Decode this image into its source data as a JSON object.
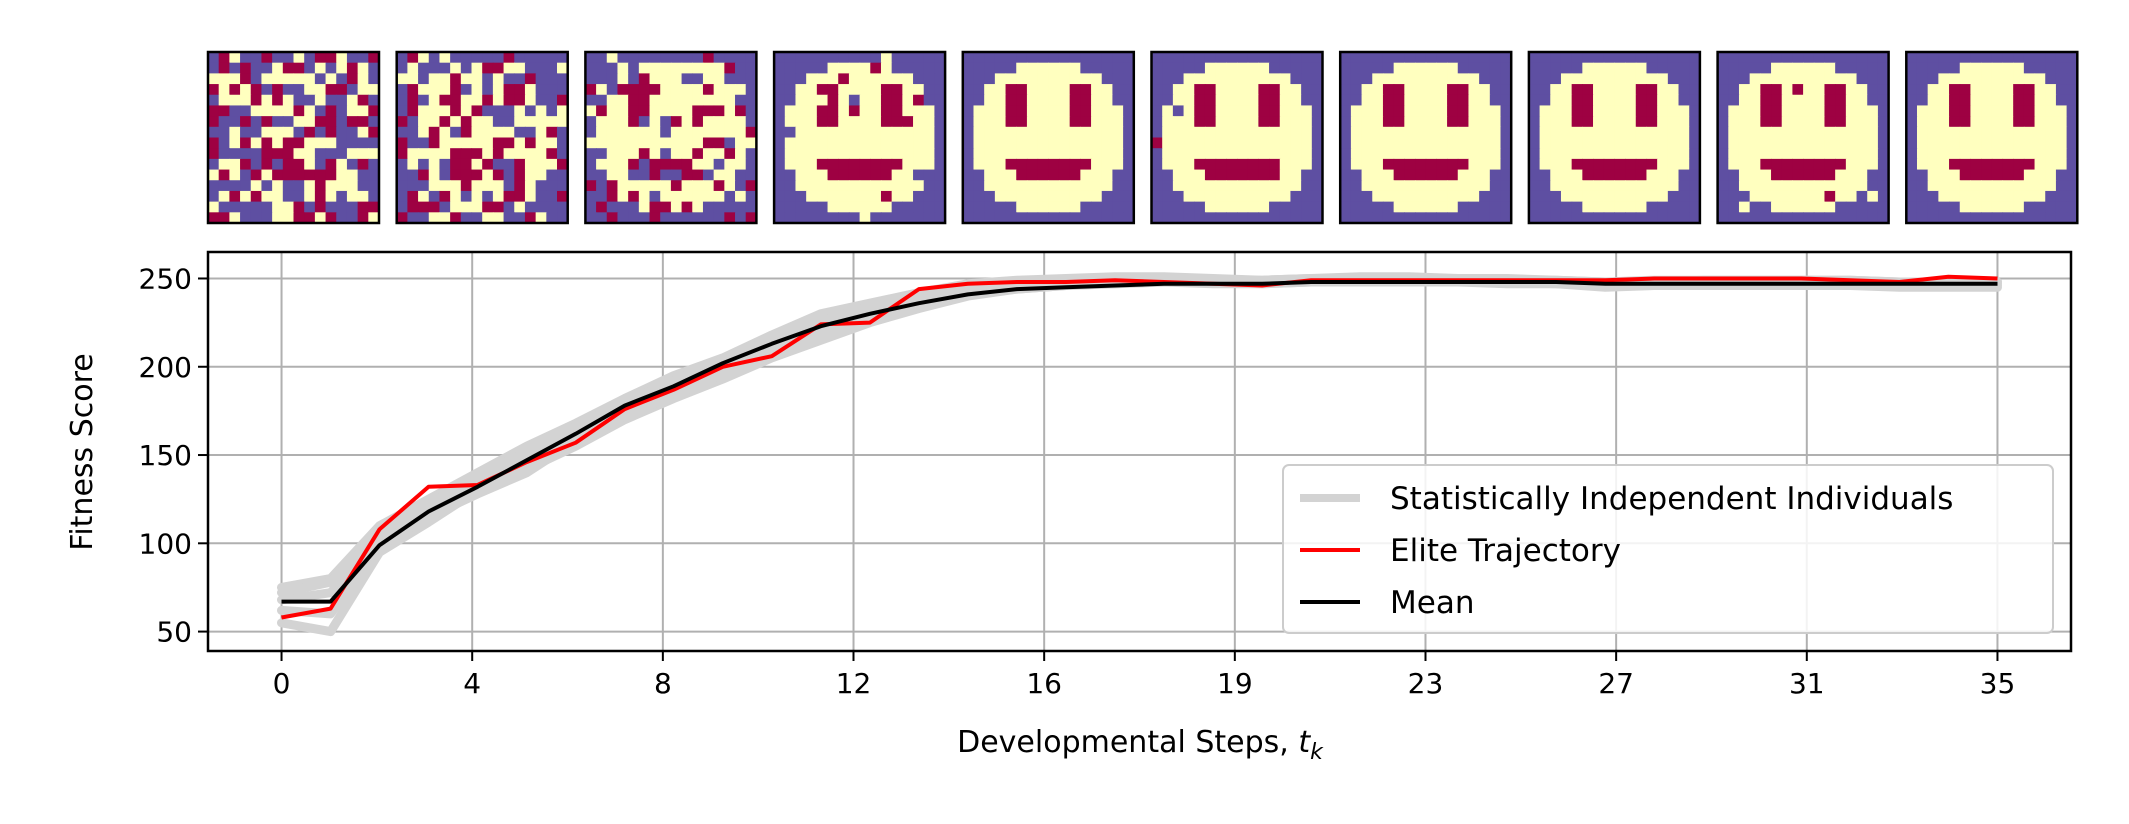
{
  "chart_data": {
    "type": "line",
    "title": "",
    "xlabel": "Developmental Steps, ",
    "xlabel_sub": "k",
    "xlabel_var": "t",
    "ylabel": "Fitness Score",
    "xlim": [
      -1.5,
      36.5
    ],
    "ylim": [
      39,
      265
    ],
    "grid": true,
    "legend_position": "lower-right",
    "x_ticks": [
      0,
      4,
      8,
      12,
      16,
      19,
      23,
      27,
      31,
      35
    ],
    "x_tick_labels": [
      "0",
      "4",
      "8",
      "12",
      "16",
      "19",
      "23",
      "27",
      "31",
      "35"
    ],
    "y_ticks": [
      50,
      100,
      150,
      200,
      250
    ],
    "y_tick_labels": [
      "50",
      "100",
      "150",
      "200",
      "250"
    ],
    "legend": [
      {
        "label": "Statistically Independent Individuals",
        "color": "#d3d3d3"
      },
      {
        "label": "Elite Trajectory",
        "color": "#ff0000"
      },
      {
        "label": "Mean",
        "color": "#000000"
      }
    ],
    "x": [
      0,
      1,
      2,
      3,
      4,
      5,
      6,
      7,
      8,
      9,
      10,
      11,
      12,
      13,
      14,
      15,
      16,
      17,
      18,
      19,
      20,
      21,
      22,
      23,
      24,
      25,
      26,
      27,
      28,
      29,
      30,
      31,
      32,
      33,
      34,
      35
    ],
    "individuals": [
      [
        75,
        80,
        110,
        125,
        140,
        155,
        168,
        182,
        195,
        205,
        218,
        230,
        236,
        242,
        247,
        249,
        250,
        251,
        251,
        250,
        249,
        250,
        251,
        251,
        250,
        250,
        249,
        248,
        248,
        249,
        249,
        249,
        249,
        248,
        248,
        248
      ],
      [
        55,
        50,
        95,
        112,
        130,
        142,
        155,
        170,
        182,
        193,
        205,
        215,
        225,
        233,
        240,
        244,
        246,
        247,
        248,
        248,
        247,
        248,
        248,
        248,
        248,
        248,
        247,
        246,
        246,
        247,
        247,
        247,
        247,
        246,
        246,
        246
      ],
      [
        68,
        72,
        102,
        118,
        134,
        148,
        162,
        176,
        188,
        198,
        210,
        222,
        230,
        238,
        243,
        246,
        247,
        248,
        249,
        249,
        248,
        249,
        249,
        249,
        249,
        249,
        248,
        247,
        248,
        248,
        248,
        248,
        248,
        247,
        247,
        247
      ],
      [
        62,
        60,
        98,
        115,
        128,
        140,
        158,
        172,
        184,
        196,
        208,
        218,
        228,
        236,
        241,
        244,
        246,
        247,
        248,
        247,
        247,
        248,
        248,
        248,
        248,
        247,
        247,
        245,
        246,
        246,
        246,
        246,
        246,
        245,
        245,
        245
      ],
      [
        72,
        78,
        106,
        122,
        138,
        152,
        166,
        180,
        192,
        204,
        216,
        226,
        234,
        240,
        245,
        248,
        249,
        250,
        250,
        249,
        249,
        250,
        250,
        250,
        250,
        249,
        249,
        248,
        249,
        249,
        249,
        249,
        249,
        248,
        248,
        248
      ]
    ],
    "series": [
      {
        "name": "Elite Trajectory",
        "values": [
          58,
          63,
          108,
          132,
          133,
          146,
          157,
          176,
          187,
          200,
          206,
          224,
          225,
          244,
          247,
          248,
          248,
          249,
          248,
          247,
          246,
          249,
          249,
          249,
          249,
          249,
          249,
          249,
          250,
          250,
          250,
          250,
          249,
          248,
          251,
          250
        ]
      },
      {
        "name": "Mean",
        "values": [
          67,
          67,
          99,
          118,
          132,
          147,
          162,
          178,
          189,
          202,
          213,
          223,
          230,
          236,
          241,
          244,
          245,
          246,
          247,
          247,
          247,
          248,
          248,
          248,
          248,
          248,
          248,
          247,
          247,
          247,
          247,
          247,
          247,
          247,
          247,
          247
        ]
      }
    ]
  },
  "thumbnails": {
    "colors": {
      "background": "#5e4fa2",
      "face": "#ffffbf",
      "feature": "#9e0142"
    },
    "count": 10
  }
}
